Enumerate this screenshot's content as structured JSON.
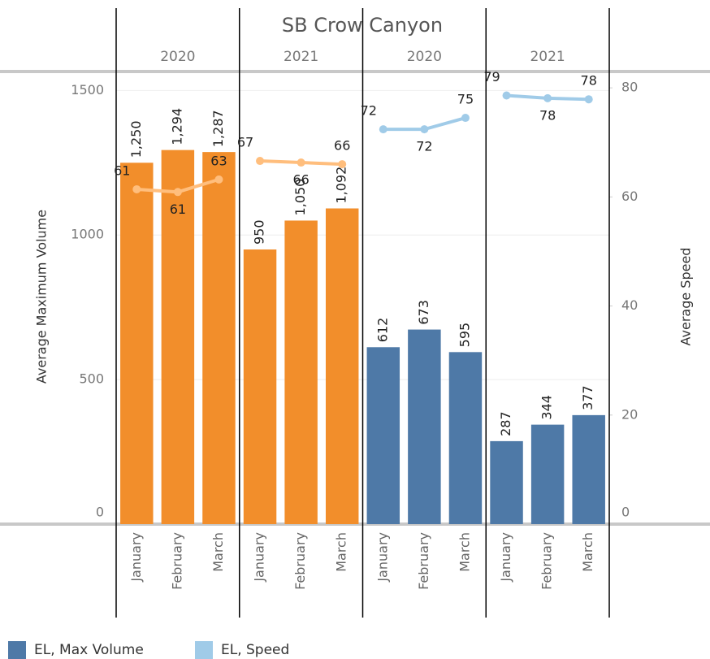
{
  "chart_data": {
    "type": "bar",
    "title": "SB Crow Canyon",
    "groups": [
      "2020",
      "2021",
      "2020",
      "2021"
    ],
    "categories": [
      "January",
      "February",
      "March",
      "January",
      "February",
      "March",
      "January",
      "February",
      "March",
      "January",
      "February",
      "March"
    ],
    "y_label": "Average Maximum Volume",
    "y2_label": "Average Speed",
    "series": [
      {
        "name": "EL, Max Volume",
        "color": "#4e79a7",
        "values": [
          null,
          null,
          null,
          null,
          null,
          null,
          612,
          673,
          595,
          287,
          344,
          377
        ],
        "value_labels": [
          null,
          null,
          null,
          null,
          null,
          null,
          "612",
          "673",
          "595",
          "287",
          "344",
          "377"
        ]
      },
      {
        "color": "#f28e2b",
        "values": [
          1250,
          1294,
          1287,
          950,
          1050,
          1092,
          null,
          null,
          null,
          null,
          null,
          null
        ],
        "value_labels": [
          "1,250",
          "1,294",
          "1,287",
          "950",
          "1,050",
          "1,092",
          null,
          null,
          null,
          null,
          null,
          null
        ]
      },
      {
        "name": "EL, Speed",
        "color": "#a0cbe8",
        "axis": "y2",
        "values": [
          null,
          null,
          null,
          null,
          null,
          null,
          72.4,
          72.4,
          74.5,
          78.6,
          78.1,
          77.9
        ],
        "value_labels": [
          null,
          null,
          null,
          null,
          null,
          null,
          "72",
          "72",
          "75",
          "79",
          "78",
          "78"
        ]
      },
      {
        "color": "#ffbe7d",
        "axis": "y2",
        "values": [
          61.4,
          60.9,
          63.2,
          66.6,
          66.3,
          66.0,
          null,
          null,
          null,
          null,
          null,
          null
        ],
        "value_labels": [
          "61",
          "61",
          "63",
          "67",
          "66",
          "66",
          null,
          null,
          null,
          null,
          null,
          null
        ]
      }
    ],
    "ylim": [
      0,
      1560
    ],
    "yticks": [
      0,
      500,
      1000,
      1500
    ],
    "y2lim": [
      0,
      82.7
    ],
    "y2ticks": [
      0,
      20,
      40,
      60,
      80
    ],
    "grid": true
  }
}
